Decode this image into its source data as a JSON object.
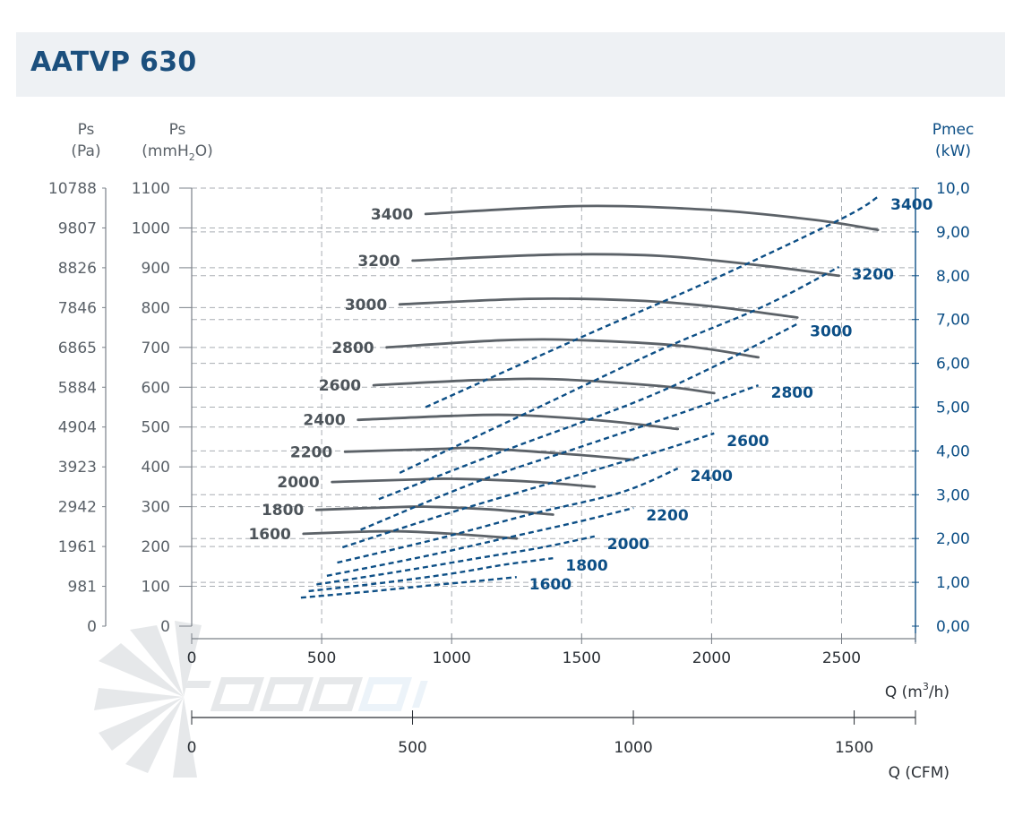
{
  "title": "AATVP 630",
  "colors": {
    "pressure_curve": "#5c6268",
    "pressure_label": "#4d545a",
    "power_curve": "#0d4f86",
    "power_label": "#0d4f86",
    "axis": "#7a8088",
    "grid": "#a9aeb3",
    "title_bg": "#eef1f4",
    "title_text": "#1b4f7d"
  },
  "chart_data": {
    "type": "line",
    "title": "AATVP 630",
    "grid": true,
    "axes": {
      "y_pa": {
        "label": "Ps",
        "unit": "(Pa)",
        "ticks": [
          "10788",
          "9807",
          "8826",
          "7846",
          "6865",
          "5884",
          "4904",
          "3923",
          "2942",
          "1961",
          "981",
          "0"
        ]
      },
      "y_mmh2o": {
        "label": "Ps",
        "unit_pre": "(mmH",
        "unit_sub": "2",
        "unit_post": "O)",
        "range": [
          0,
          1100
        ],
        "ticks": [
          "1100",
          "1000",
          "900",
          "800",
          "700",
          "600",
          "500",
          "400",
          "300",
          "200",
          "100",
          "0"
        ]
      },
      "y_kw": {
        "label": "Pmec",
        "unit": "(kW)",
        "range": [
          0,
          10
        ],
        "ticks": [
          "10,0",
          "9,00",
          "8,00",
          "7,00",
          "6,00",
          "5,00",
          "4,00",
          "3,00",
          "2,00",
          "1,00",
          "0,00"
        ]
      },
      "x_m3h": {
        "label_pre": "Q (m",
        "label_sup": "3",
        "label_post": "/h)",
        "range": [
          0,
          2800
        ],
        "ticks": [
          "0",
          "500",
          "1000",
          "1500",
          "2000",
          "2500"
        ]
      },
      "x_cfm": {
        "label": "Q (CFM)",
        "ticks": [
          "0",
          "500",
          "1000",
          "1500"
        ]
      }
    },
    "pressure_series": [
      {
        "name": "3400",
        "points": [
          [
            900,
            1035
          ],
          [
            1500,
            1055
          ],
          [
            2000,
            1045
          ],
          [
            2400,
            1020
          ],
          [
            2640,
            995
          ]
        ]
      },
      {
        "name": "3200",
        "points": [
          [
            850,
            918
          ],
          [
            1400,
            933
          ],
          [
            1800,
            930
          ],
          [
            2200,
            905
          ],
          [
            2490,
            880
          ]
        ]
      },
      {
        "name": "3000",
        "points": [
          [
            800,
            808
          ],
          [
            1300,
            822
          ],
          [
            1700,
            818
          ],
          [
            2000,
            803
          ],
          [
            2330,
            775
          ]
        ]
      },
      {
        "name": "2800",
        "points": [
          [
            750,
            700
          ],
          [
            1200,
            718
          ],
          [
            1500,
            718
          ],
          [
            1900,
            703
          ],
          [
            2180,
            675
          ]
        ]
      },
      {
        "name": "2600",
        "points": [
          [
            700,
            605
          ],
          [
            1100,
            618
          ],
          [
            1400,
            620
          ],
          [
            1800,
            603
          ],
          [
            2010,
            585
          ]
        ]
      },
      {
        "name": "2400",
        "points": [
          [
            640,
            518
          ],
          [
            1000,
            528
          ],
          [
            1250,
            530
          ],
          [
            1600,
            515
          ],
          [
            1870,
            495
          ]
        ]
      },
      {
        "name": "2200",
        "points": [
          [
            590,
            438
          ],
          [
            950,
            445
          ],
          [
            1100,
            447
          ],
          [
            1450,
            432
          ],
          [
            1700,
            418
          ]
        ]
      },
      {
        "name": "2000",
        "points": [
          [
            540,
            362
          ],
          [
            850,
            368
          ],
          [
            1000,
            370
          ],
          [
            1300,
            363
          ],
          [
            1550,
            350
          ]
        ]
      },
      {
        "name": "1800",
        "points": [
          [
            480,
            292
          ],
          [
            750,
            298
          ],
          [
            900,
            300
          ],
          [
            1150,
            293
          ],
          [
            1390,
            280
          ]
        ]
      },
      {
        "name": "1600",
        "points": [
          [
            430,
            232
          ],
          [
            650,
            237
          ],
          [
            800,
            238
          ],
          [
            1000,
            232
          ],
          [
            1250,
            220
          ]
        ]
      }
    ],
    "power_series": [
      {
        "name": "3400",
        "points": [
          [
            900,
            5.0
          ],
          [
            1500,
            6.6
          ],
          [
            2000,
            7.9
          ],
          [
            2500,
            9.3
          ],
          [
            2640,
            9.8
          ]
        ]
      },
      {
        "name": "3200",
        "points": [
          [
            800,
            3.5
          ],
          [
            1300,
            4.9
          ],
          [
            1800,
            6.3
          ],
          [
            2200,
            7.3
          ],
          [
            2490,
            8.2
          ]
        ]
      },
      {
        "name": "3000",
        "points": [
          [
            720,
            2.9
          ],
          [
            1200,
            4.0
          ],
          [
            1700,
            5.1
          ],
          [
            2000,
            5.9
          ],
          [
            2330,
            6.9
          ]
        ]
      },
      {
        "name": "2800",
        "points": [
          [
            650,
            2.2
          ],
          [
            1100,
            3.3
          ],
          [
            1500,
            4.1
          ],
          [
            1900,
            4.9
          ],
          [
            2180,
            5.5
          ]
        ]
      },
      {
        "name": "2600",
        "points": [
          [
            580,
            1.8
          ],
          [
            1000,
            2.6
          ],
          [
            1400,
            3.3
          ],
          [
            1800,
            4.0
          ],
          [
            2010,
            4.4
          ]
        ]
      },
      {
        "name": "2400",
        "points": [
          [
            560,
            1.45
          ],
          [
            950,
            2.0
          ],
          [
            1300,
            2.55
          ],
          [
            1650,
            3.05
          ],
          [
            1870,
            3.6
          ]
        ]
      },
      {
        "name": "2200",
        "points": [
          [
            520,
            1.15
          ],
          [
            900,
            1.6
          ],
          [
            1200,
            2.0
          ],
          [
            1500,
            2.4
          ],
          [
            1700,
            2.7
          ]
        ]
      },
      {
        "name": "2000",
        "points": [
          [
            480,
            0.95
          ],
          [
            800,
            1.25
          ],
          [
            1100,
            1.55
          ],
          [
            1350,
            1.8
          ],
          [
            1550,
            2.05
          ]
        ]
      },
      {
        "name": "1800",
        "points": [
          [
            450,
            0.8
          ],
          [
            750,
            1.0
          ],
          [
            1000,
            1.2
          ],
          [
            1200,
            1.4
          ],
          [
            1390,
            1.55
          ]
        ]
      },
      {
        "name": "1600",
        "points": [
          [
            420,
            0.65
          ],
          [
            700,
            0.8
          ],
          [
            900,
            0.92
          ],
          [
            1100,
            1.03
          ],
          [
            1250,
            1.12
          ]
        ]
      }
    ]
  }
}
